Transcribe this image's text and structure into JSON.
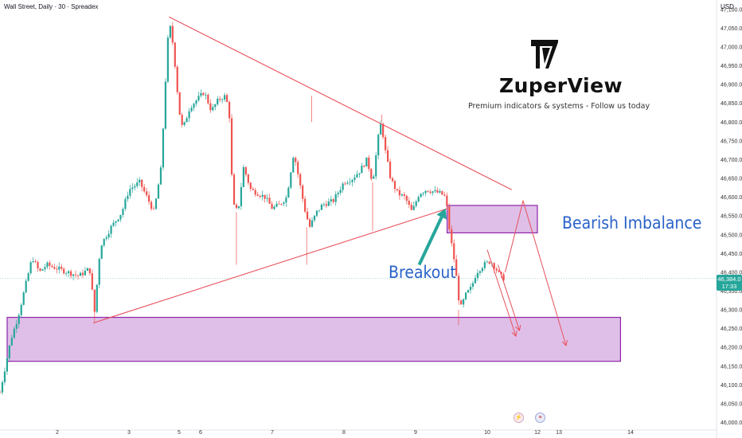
{
  "header": {
    "title": "Wall Street, Daily · 30 · Spreadex"
  },
  "currency": "USD",
  "brand": {
    "name": "ZuperView",
    "tagline": "Premium indicators & systems - Follow us today"
  },
  "annotations": {
    "bearish_imbalance": "Bearish Imbalance",
    "breakout": "Breakout"
  },
  "price_tag": {
    "price": "46,384.0",
    "countdown": "17:33"
  },
  "events": {
    "earnings_icon": "lightning-icon",
    "us_event_icon": "us-flag-icon"
  },
  "colors": {
    "up_candle": "#26a69a",
    "down_candle": "#ef5350",
    "trendline": "#e8505b",
    "zone_fill": "#dcb8e6",
    "zone_border": "#8e24aa",
    "annotation_text": "#2962c9",
    "breakout_arrow": "#26a69a"
  },
  "chart_data": {
    "type": "candlestick",
    "title": "Wall Street, Daily · 30 · Spreadex",
    "ylim": [
      45980,
      47125
    ],
    "xlim": [
      0,
      100
    ],
    "y_ticks": [
      "47,100.0",
      "47,050.0",
      "47,000.0",
      "46,950.0",
      "46,900.0",
      "46,850.0",
      "46,800.0",
      "46,750.0",
      "46,700.0",
      "46,650.0",
      "46,600.0",
      "46,550.0",
      "46,500.0",
      "46,450.0",
      "46,400.0",
      "46,350.0",
      "46,300.0",
      "46,250.0",
      "46,200.0",
      "46,150.0",
      "46,100.0",
      "46,050.0",
      "46,000.0"
    ],
    "x_ticks": [
      {
        "label": "2",
        "x": 8.0
      },
      {
        "label": "3",
        "x": 18.0
      },
      {
        "label": "5",
        "x": 25.0
      },
      {
        "label": "6",
        "x": 28.0
      },
      {
        "label": "7",
        "x": 38.0
      },
      {
        "label": "8",
        "x": 48.0
      },
      {
        "label": "9",
        "x": 58.0
      },
      {
        "label": "10",
        "x": 68.0
      },
      {
        "label": "12",
        "x": 75.0
      },
      {
        "label": "13",
        "x": 78.0
      },
      {
        "label": "14",
        "x": 88.0
      }
    ],
    "price_path": [
      [
        0.0,
        46080
      ],
      [
        1.5,
        46220
      ],
      [
        2.5,
        46280
      ],
      [
        3.5,
        46360
      ],
      [
        4.5,
        46440
      ],
      [
        5.5,
        46400
      ],
      [
        6.5,
        46420
      ],
      [
        8.0,
        46410
      ],
      [
        9.5,
        46400
      ],
      [
        11.0,
        46390
      ],
      [
        12.5,
        46410
      ],
      [
        13.2,
        46295
      ],
      [
        14.0,
        46470
      ],
      [
        15.5,
        46520
      ],
      [
        17.0,
        46560
      ],
      [
        18.0,
        46620
      ],
      [
        19.5,
        46640
      ],
      [
        20.5,
        46600
      ],
      [
        21.5,
        46560
      ],
      [
        22.5,
        46680
      ],
      [
        23.2,
        46950
      ],
      [
        23.6,
        47070
      ],
      [
        24.2,
        47000
      ],
      [
        25.0,
        46830
      ],
      [
        25.5,
        46780
      ],
      [
        26.5,
        46840
      ],
      [
        27.5,
        46860
      ],
      [
        28.5,
        46880
      ],
      [
        29.5,
        46830
      ],
      [
        30.5,
        46860
      ],
      [
        31.5,
        46870
      ],
      [
        32.0,
        46820
      ],
      [
        32.5,
        46580
      ],
      [
        33.2,
        46560
      ],
      [
        34.0,
        46680
      ],
      [
        35.0,
        46620
      ],
      [
        36.0,
        46610
      ],
      [
        37.0,
        46600
      ],
      [
        38.0,
        46570
      ],
      [
        39.0,
        46580
      ],
      [
        40.0,
        46600
      ],
      [
        41.0,
        46720
      ],
      [
        41.8,
        46640
      ],
      [
        42.5,
        46570
      ],
      [
        43.2,
        46520
      ],
      [
        44.2,
        46560
      ],
      [
        45.0,
        46580
      ],
      [
        46.5,
        46590
      ],
      [
        48.0,
        46640
      ],
      [
        49.2,
        46650
      ],
      [
        50.2,
        46670
      ],
      [
        51.2,
        46700
      ],
      [
        52.0,
        46640
      ],
      [
        52.8,
        46760
      ],
      [
        53.2,
        46800
      ],
      [
        53.8,
        46720
      ],
      [
        54.5,
        46650
      ],
      [
        55.5,
        46610
      ],
      [
        56.5,
        46600
      ],
      [
        57.5,
        46560
      ],
      [
        58.5,
        46610
      ],
      [
        59.5,
        46620
      ],
      [
        60.5,
        46615
      ],
      [
        61.5,
        46610
      ],
      [
        62.2,
        46600
      ],
      [
        62.8,
        46500
      ],
      [
        63.5,
        46420
      ],
      [
        64.2,
        46300
      ],
      [
        65.0,
        46340
      ],
      [
        65.8,
        46360
      ],
      [
        66.5,
        46400
      ],
      [
        67.5,
        46420
      ],
      [
        68.5,
        46430
      ],
      [
        69.2,
        46410
      ],
      [
        69.8,
        46390
      ],
      [
        70.3,
        46384
      ]
    ],
    "trendline_upper": [
      [
        23.6,
        47080
      ],
      [
        71.4,
        46620
      ]
    ],
    "trendline_lower": [
      [
        13.0,
        46265
      ],
      [
        62.5,
        46570
      ]
    ],
    "zones": [
      {
        "name": "Bearish Imbalance",
        "x": [
          62.4,
          75.0
        ],
        "y": [
          46505,
          46578
        ]
      },
      {
        "name": "support zone",
        "x": [
          1.0,
          86.6
        ],
        "y": [
          46163,
          46280
        ]
      }
    ],
    "projection_arrows": [
      [
        [
          68.0,
          46460
        ],
        [
          72.0,
          46230
        ]
      ],
      [
        [
          69.5,
          46420
        ],
        [
          72.5,
          46245
        ]
      ],
      [
        [
          70.5,
          46400
        ],
        [
          73.0,
          46590
        ],
        [
          79.0,
          46205
        ]
      ]
    ],
    "breakout_arrow": [
      [
        58.5,
        46420
      ],
      [
        62.2,
        46570
      ]
    ],
    "last_price": 46384.0
  }
}
